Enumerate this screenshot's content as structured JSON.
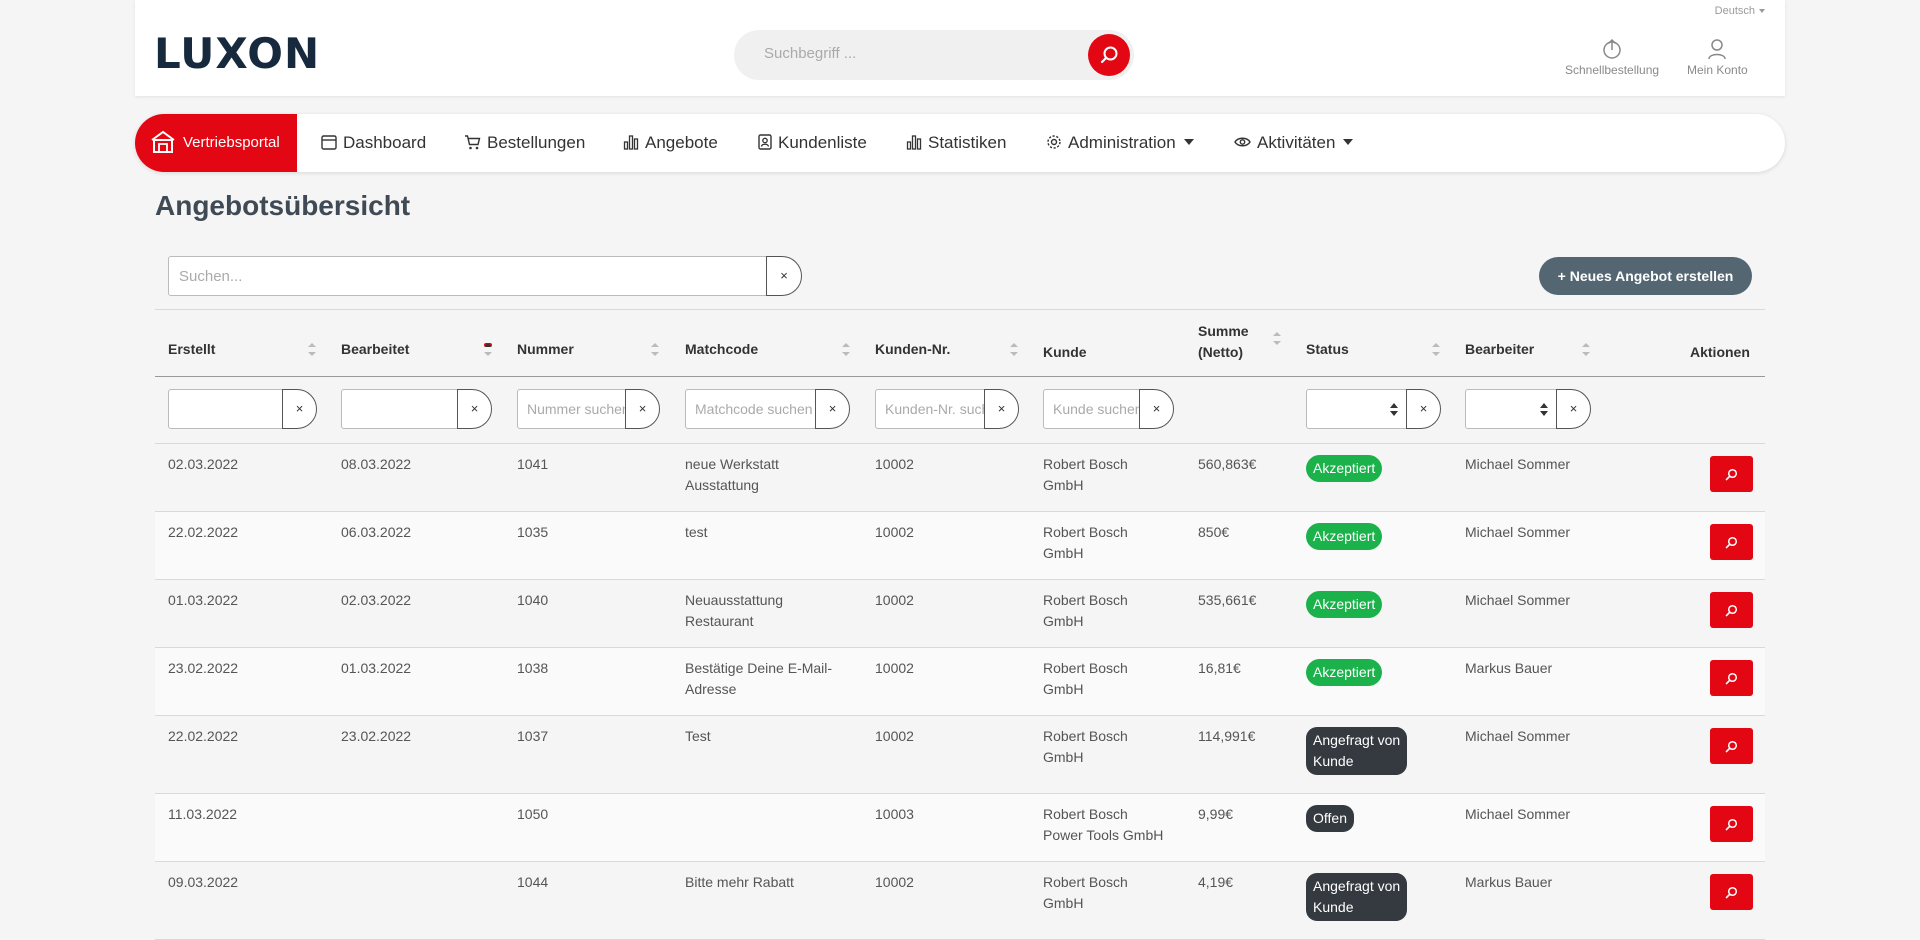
{
  "header": {
    "logo": "LUXON",
    "language": "Deutsch",
    "search_placeholder": "Suchbegriff ...",
    "quick_order": "Schnellbestellung",
    "account": "Mein Konto"
  },
  "nav": {
    "portal": "Vertriebsportal",
    "items": [
      "Dashboard",
      "Bestellungen",
      "Angebote",
      "Kundenliste",
      "Statistiken",
      "Administration",
      "Aktivitäten"
    ]
  },
  "page": {
    "title": "Angebotsübersicht",
    "search_placeholder": "Suchen...",
    "clear": "×",
    "new_button": "+ Neues Angebot erstellen"
  },
  "table": {
    "headers": {
      "created": "Erstellt",
      "edited": "Bearbeitet",
      "number": "Nummer",
      "matchcode": "Matchcode",
      "customer_no": "Kunden-Nr.",
      "customer": "Kunde",
      "sum_line1": "Summe",
      "sum_line2": "(Netto)",
      "status": "Status",
      "editor": "Bearbeiter",
      "actions": "Aktionen"
    },
    "filters": {
      "number_placeholder": "Nummer suchen",
      "matchcode_placeholder": "Matchcode suchen",
      "customer_no_placeholder": "Kunden-Nr. suchen",
      "customer_placeholder": "Kunde suchen"
    },
    "rows": [
      {
        "created": "02.03.2022",
        "edited": "08.03.2022",
        "number": "1041",
        "matchcode": [
          "neue Werkstatt",
          "Ausstattung"
        ],
        "customer_no": "10002",
        "customer": [
          "Robert Bosch",
          "GmbH"
        ],
        "sum": "560,863€",
        "status": [
          "Akzeptiert"
        ],
        "status_type": "green",
        "editor": "Michael Sommer"
      },
      {
        "created": "22.02.2022",
        "edited": "06.03.2022",
        "number": "1035",
        "matchcode": [
          "test",
          ""
        ],
        "customer_no": "10002",
        "customer": [
          "Robert Bosch",
          "GmbH"
        ],
        "sum": "850€",
        "status": [
          "Akzeptiert"
        ],
        "status_type": "green",
        "editor": "Michael Sommer"
      },
      {
        "created": "01.03.2022",
        "edited": "02.03.2022",
        "number": "1040",
        "matchcode": [
          "Neuausstattung",
          "Restaurant"
        ],
        "customer_no": "10002",
        "customer": [
          "Robert Bosch",
          "GmbH"
        ],
        "sum": "535,661€",
        "status": [
          "Akzeptiert"
        ],
        "status_type": "green",
        "editor": "Michael Sommer"
      },
      {
        "created": "23.02.2022",
        "edited": "01.03.2022",
        "number": "1038",
        "matchcode": [
          "Bestätige Deine E-Mail-",
          "Adresse"
        ],
        "customer_no": "10002",
        "customer": [
          "Robert Bosch",
          "GmbH"
        ],
        "sum": "16,81€",
        "status": [
          "Akzeptiert"
        ],
        "status_type": "green",
        "editor": "Markus Bauer"
      },
      {
        "created": "22.02.2022",
        "edited": "23.02.2022",
        "number": "1037",
        "matchcode": [
          "Test",
          ""
        ],
        "customer_no": "10002",
        "customer": [
          "Robert Bosch",
          "GmbH"
        ],
        "sum": "114,991€",
        "status": [
          "Angefragt von",
          "Kunde"
        ],
        "status_type": "dark",
        "editor": "Michael Sommer"
      },
      {
        "created": "11.03.2022",
        "edited": "",
        "number": "1050",
        "matchcode": [
          "",
          ""
        ],
        "customer_no": "10003",
        "customer": [
          "Robert Bosch",
          "Power Tools GmbH"
        ],
        "sum": "9,99€",
        "status": [
          "Offen"
        ],
        "status_type": "dark",
        "editor": "Michael Sommer"
      },
      {
        "created": "09.03.2022",
        "edited": "",
        "number": "1044",
        "matchcode": [
          "Bitte mehr Rabatt",
          ""
        ],
        "customer_no": "10002",
        "customer": [
          "Robert Bosch",
          "GmbH"
        ],
        "sum": "4,19€",
        "status": [
          "Angefragt von",
          "Kunde"
        ],
        "status_type": "dark",
        "editor": "Markus Bauer"
      }
    ]
  },
  "colors": {
    "brand_red": "#e30613",
    "accepted_green": "#1cb24b",
    "dark_badge": "#343a40",
    "new_button": "#556673"
  }
}
